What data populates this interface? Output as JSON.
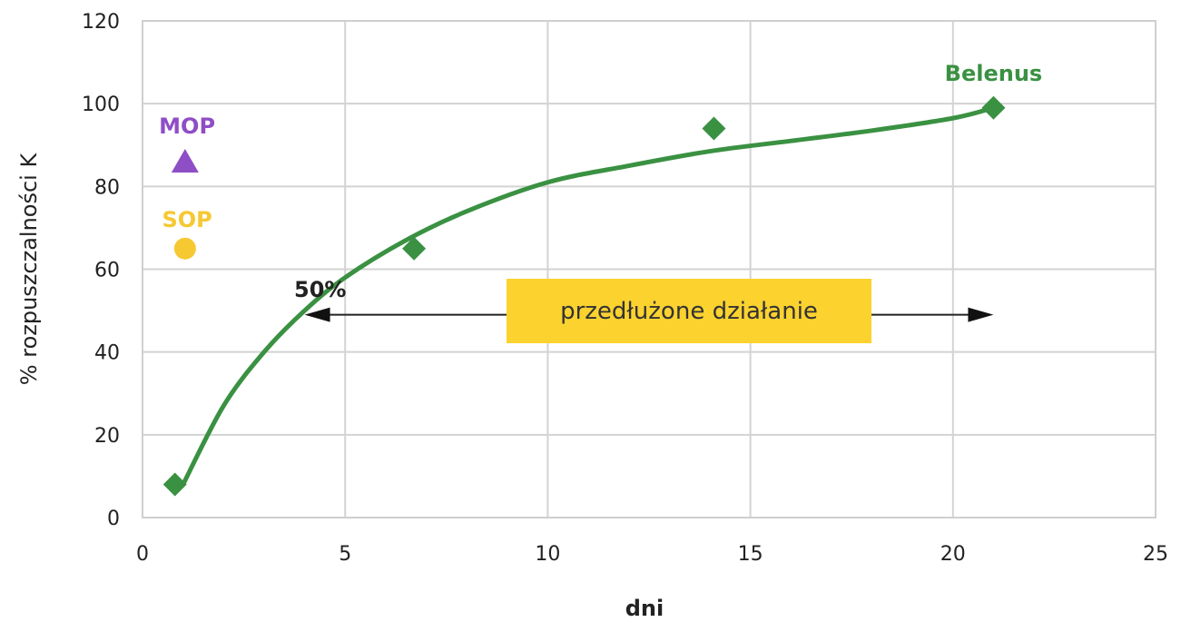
{
  "chart_data": {
    "type": "scatter",
    "xlabel": "dni",
    "ylabel": "% rozpuszczalności K",
    "xlim": [
      0,
      25
    ],
    "ylim": [
      0,
      120
    ],
    "xticks": [
      0,
      5,
      10,
      15,
      20,
      25
    ],
    "yticks": [
      0,
      20,
      40,
      60,
      80,
      100,
      120
    ],
    "grid": true,
    "series": [
      {
        "name": "Belenus",
        "marker": "diamond",
        "color": "#3a9142",
        "points": [
          {
            "x": 0.8,
            "y": 8
          },
          {
            "x": 6.7,
            "y": 65
          },
          {
            "x": 14.1,
            "y": 94
          },
          {
            "x": 21.0,
            "y": 99
          }
        ],
        "trend": [
          {
            "x": 1.0,
            "y": 8
          },
          {
            "x": 2.0,
            "y": 27
          },
          {
            "x": 3.0,
            "y": 40
          },
          {
            "x": 4.0,
            "y": 50
          },
          {
            "x": 5.0,
            "y": 58
          },
          {
            "x": 6.5,
            "y": 67
          },
          {
            "x": 8.0,
            "y": 74
          },
          {
            "x": 10.0,
            "y": 81
          },
          {
            "x": 12.0,
            "y": 85
          },
          {
            "x": 14.0,
            "y": 88.5
          },
          {
            "x": 16.0,
            "y": 91
          },
          {
            "x": 18.0,
            "y": 93.5
          },
          {
            "x": 20.0,
            "y": 96.5
          },
          {
            "x": 21.0,
            "y": 99
          }
        ]
      },
      {
        "name": "MOP",
        "marker": "triangle",
        "color": "#8e4ec6",
        "points": [
          {
            "x": 1.05,
            "y": 86
          }
        ]
      },
      {
        "name": "SOP",
        "marker": "circle",
        "color": "#f6c832",
        "points": [
          {
            "x": 1.05,
            "y": 65
          }
        ]
      }
    ],
    "annotations": {
      "fifty_label": "50%",
      "arrow": {
        "x_start": 4.0,
        "x_end": 21.0,
        "y": 49
      },
      "box_label": "przedłużone działanie",
      "box_color": "#fcd22f"
    }
  }
}
